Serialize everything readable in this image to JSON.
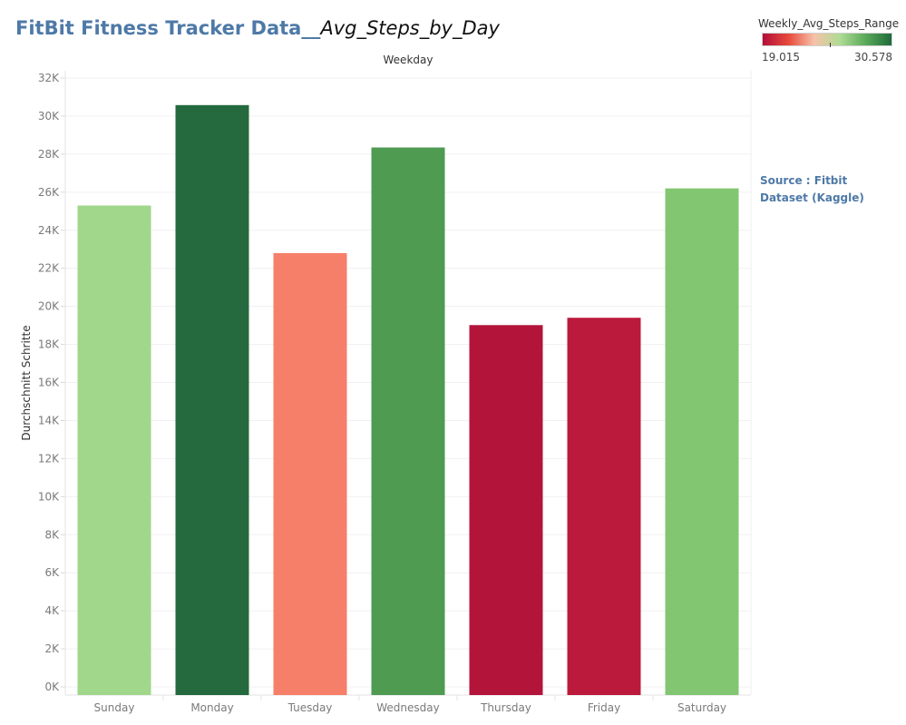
{
  "title": {
    "main": "FitBit Fitness Tracker Data__",
    "sub": "Avg_Steps_by_Day"
  },
  "legend": {
    "title": "Weekly_Avg_Steps_Range",
    "min_label": "19.015",
    "max_label": "30.578",
    "min": 19015,
    "max": 30578,
    "colors": [
      "#b30f3a",
      "#e8493b",
      "#f7c2a9",
      "#aedc94",
      "#5aa95a",
      "#1f6a3c"
    ]
  },
  "source": {
    "text": "Source : Fitbit Dataset (Kaggle)"
  },
  "chart_data": {
    "type": "bar",
    "title": "FitBit Fitness Tracker Data__Avg_Steps_by_Day",
    "xlabel": "Weekday",
    "ylabel": "Durchschnitt Schritte",
    "categories": [
      "Sunday",
      "Monday",
      "Tuesday",
      "Wednesday",
      "Thursday",
      "Friday",
      "Saturday"
    ],
    "values": [
      25300,
      30578,
      22800,
      28350,
      19015,
      19400,
      26200
    ],
    "colors": [
      "#a0d78b",
      "#246a3e",
      "#f67f69",
      "#4e9b51",
      "#b2143a",
      "#bc1a3c",
      "#82c672"
    ],
    "ylim": [
      0,
      32000
    ],
    "yticks": [
      0,
      2000,
      4000,
      6000,
      8000,
      10000,
      12000,
      14000,
      16000,
      18000,
      20000,
      22000,
      24000,
      26000,
      28000,
      30000,
      32000
    ],
    "ytick_labels": [
      "0K",
      "2K",
      "4K",
      "6K",
      "8K",
      "10K",
      "12K",
      "14K",
      "16K",
      "18K",
      "20K",
      "22K",
      "24K",
      "26K",
      "28K",
      "30K",
      "32K"
    ],
    "grid": true
  }
}
